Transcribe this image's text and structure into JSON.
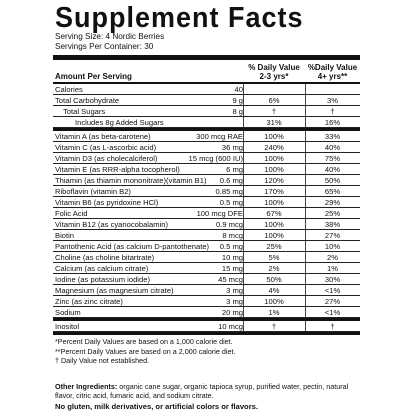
{
  "title": "Supplement Facts",
  "serving_size": "Serving Size: 4 Nordic Berries",
  "servings_per_container": "Servings Per Container: 30",
  "header": {
    "amount_per_serving": "Amount Per Serving",
    "col1": "% Daily Value",
    "col1_sub": "2-3 yrs*",
    "col2": "%Daily Value",
    "col2_sub": "4+ yrs**"
  },
  "rows_top": [
    {
      "name": "Calories",
      "amount": "40",
      "dv1": "",
      "dv2": "",
      "indent": 0
    },
    {
      "name": "Total Carbohydrate",
      "amount": "9 g",
      "dv1": "6%",
      "dv2": "3%",
      "indent": 0
    },
    {
      "name": "Total Sugars",
      "amount": "8 g",
      "dv1": "†",
      "dv2": "†",
      "indent": 1
    },
    {
      "name": "Includes 8g Added Sugars",
      "amount": "",
      "dv1": "31%",
      "dv2": "16%",
      "indent": 2
    }
  ],
  "rows_vitamins": [
    {
      "name": "Vitamin A (as beta-carotene)",
      "amount": "300 mcg RAE",
      "dv1": "100%",
      "dv2": "33%"
    },
    {
      "name": "Vitamin C (as L-ascorbic acid)",
      "amount": "36 mg",
      "dv1": "240%",
      "dv2": "40%"
    },
    {
      "name": "Vitamin D3 (as cholecalciferol)",
      "amount": "15 mcg (600 IU)",
      "dv1": "100%",
      "dv2": "75%"
    },
    {
      "name": "Vitamin E (as RRR-alpha tocopherol)",
      "amount": "6 mg",
      "dv1": "100%",
      "dv2": "40%"
    },
    {
      "name": "Thiamin (as thiamin mononitrate)(vitamin B1)",
      "amount": "0.6 mg",
      "dv1": "120%",
      "dv2": "50%"
    },
    {
      "name": "Riboflavin (vitamin B2)",
      "amount": "0.85 mg",
      "dv1": "170%",
      "dv2": "65%"
    },
    {
      "name": "Vitamin B6 (as pyridoxine HCl)",
      "amount": "0.5 mg",
      "dv1": "100%",
      "dv2": "29%"
    },
    {
      "name": "Folic Acid",
      "amount": "100 mcg DFE",
      "dv1": "67%",
      "dv2": "25%"
    },
    {
      "name": "Vitamin B12 (as cyanocobalamin)",
      "amount": "0.9 mcg",
      "dv1": "100%",
      "dv2": "38%"
    },
    {
      "name": "Biotin",
      "amount": "8 mcg",
      "dv1": "100%",
      "dv2": "27%"
    },
    {
      "name": "Pantothenic Acid (as calcium D-pantothenate)",
      "amount": "0.5 mg",
      "dv1": "25%",
      "dv2": "10%"
    },
    {
      "name": "Choline (as choline bitartrate)",
      "amount": "10 mg",
      "dv1": "5%",
      "dv2": "2%"
    },
    {
      "name": "Calcium (as calcium citrate)",
      "amount": "15 mg",
      "dv1": "2%",
      "dv2": "1%"
    },
    {
      "name": "Iodine (as potassium iodide)",
      "amount": "45 mcg",
      "dv1": "50%",
      "dv2": "30%"
    },
    {
      "name": "Magnesium (as magnesium citrate)",
      "amount": "3 mg",
      "dv1": "4%",
      "dv2": "<1%"
    },
    {
      "name": "Zinc (as zinc citrate)",
      "amount": "3 mg",
      "dv1": "100%",
      "dv2": "27%"
    },
    {
      "name": "Sodium",
      "amount": "20 mg",
      "dv1": "1%",
      "dv2": "<1%"
    }
  ],
  "rows_bottom": [
    {
      "name": "Inositol",
      "amount": "10 mcg",
      "dv1": "†",
      "dv2": "†"
    }
  ],
  "notes": [
    "*Percent Daily Values are based on a 1,000 calorie diet.",
    "**Percent Daily Values are based on a 2,000 calorie diet.",
    "† Daily Value not established."
  ],
  "other_ingredients": {
    "label": "Other Ingredients:",
    "text": " organic cane sugar, organic tapioca syrup, purified water, pectin, natural flavor, citric acid, fumaric acid, and sodium citrate."
  },
  "allergen": "No gluten, milk derivatives, or artificial colors or flavors."
}
